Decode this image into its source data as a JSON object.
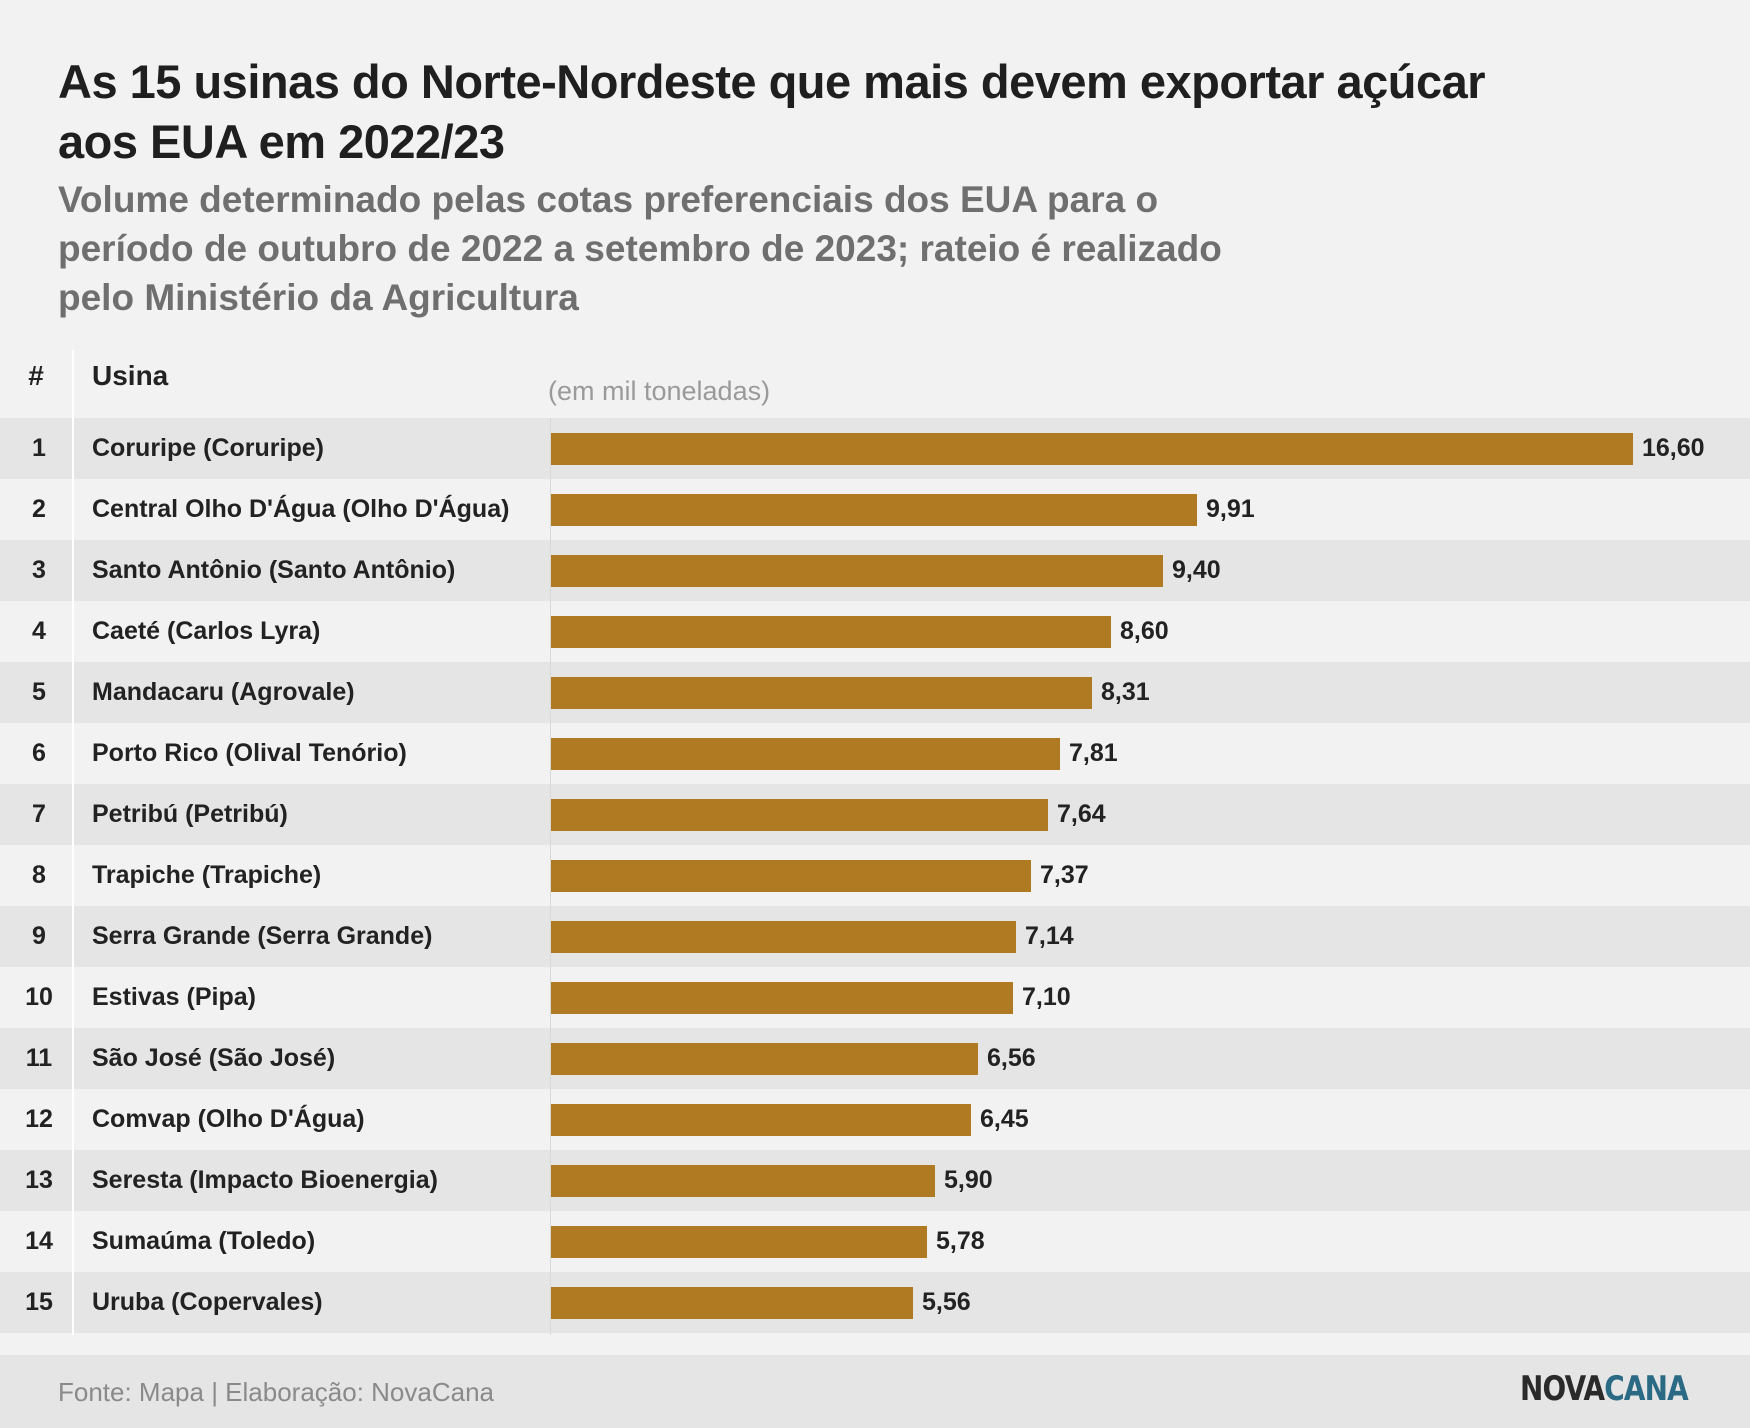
{
  "title": "As 15 usinas do Norte-Nordeste que mais devem exportar açúcar aos EUA em 2022/23",
  "subtitle": "Volume determinado pelas cotas preferenciais dos EUA para o período de outubro de 2022 a setembro de 2023; rateio é realizado pelo Ministério da Agricultura",
  "columns": {
    "rank": "#",
    "name": "Usina",
    "unit": "(em mil toneladas)"
  },
  "chart_data": {
    "type": "bar",
    "orientation": "horizontal",
    "categories": [
      "Coruripe (Coruripe)",
      "Central Olho D'Água (Olho D'Água)",
      "Santo Antônio (Santo Antônio)",
      "Caeté (Carlos Lyra)",
      "Mandacaru (Agrovale)",
      "Porto Rico (Olival Tenório)",
      "Petribú (Petribú)",
      "Trapiche (Trapiche)",
      "Serra Grande (Serra Grande)",
      "Estivas (Pipa)",
      "São José (São José)",
      "Comvap (Olho D'Água)",
      "Seresta (Impacto Bioenergia)",
      "Sumaúma (Toledo)",
      "Uruba (Copervales)"
    ],
    "ranks": [
      "1",
      "2",
      "3",
      "4",
      "5",
      "6",
      "7",
      "8",
      "9",
      "10",
      "11",
      "12",
      "13",
      "14",
      "15"
    ],
    "values": [
      16.6,
      9.91,
      9.4,
      8.6,
      8.31,
      7.81,
      7.64,
      7.37,
      7.14,
      7.1,
      6.56,
      6.45,
      5.9,
      5.78,
      5.56
    ],
    "value_labels": [
      "16,60",
      "9,91",
      "9,40",
      "8,60",
      "8,31",
      "7,81",
      "7,64",
      "7,37",
      "7,14",
      "7,10",
      "6,56",
      "6,45",
      "5,90",
      "5,78",
      "5,56"
    ],
    "xlim": [
      0,
      16.6
    ],
    "grid": false,
    "bar_color": "#b07a22"
  },
  "footer": {
    "source": "Fonte: Mapa | Elaboração: NovaCana",
    "logo_part1": "NOVA",
    "logo_part2": "CANA"
  },
  "colors": {
    "background": "#f2f2f2",
    "row_alt": "#e5e5e5",
    "bar": "#b07a22",
    "logo_accent": "#2a6a84"
  }
}
